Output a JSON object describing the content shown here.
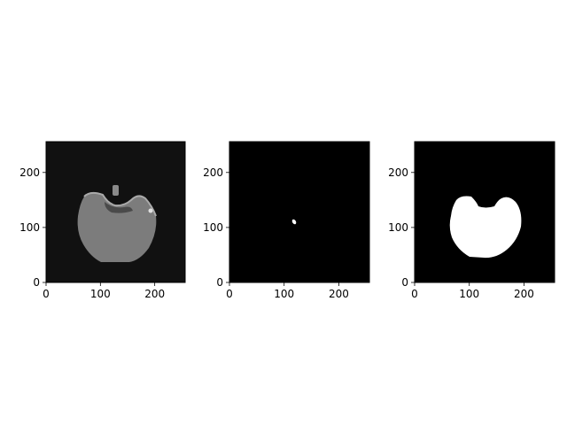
{
  "figure": {
    "background": "#ffffff",
    "panels": [
      {
        "name": "image",
        "background_color": "#111111",
        "xticks": [
          "0",
          "100",
          "200"
        ],
        "yticks": [
          "0",
          "100",
          "200"
        ],
        "tick_values": [
          0,
          100,
          200
        ],
        "extent": [
          0,
          256
        ],
        "content": "grayscale brain slice"
      },
      {
        "name": "lesion-mask",
        "background_color": "#000000",
        "xticks": [
          "0",
          "100",
          "200"
        ],
        "yticks": [
          "0",
          "100",
          "200"
        ],
        "tick_values": [
          0,
          100,
          200
        ],
        "extent": [
          0,
          256
        ],
        "content": "small white spot"
      },
      {
        "name": "brain-mask",
        "background_color": "#000000",
        "xticks": [
          "0",
          "100",
          "200"
        ],
        "yticks": [
          "0",
          "100",
          "200"
        ],
        "tick_values": [
          0,
          100,
          200
        ],
        "extent": [
          0,
          256
        ],
        "content": "white brain-shaped mask"
      }
    ]
  }
}
